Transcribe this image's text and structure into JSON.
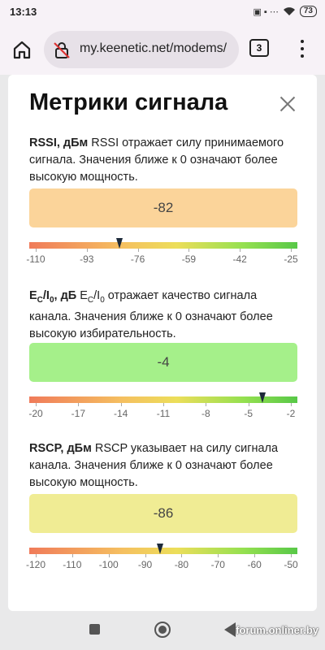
{
  "status": {
    "time": "13:13",
    "icons": "▣ ▪ ⋯",
    "battery": "73"
  },
  "browser": {
    "url": "my.keenetic.net/modems/",
    "tab_count": "3"
  },
  "dialog": {
    "title": "Метрики сигнала",
    "close_icon": "close-icon"
  },
  "metrics": [
    {
      "name": "RSSI, дБм",
      "description": " RSSI отражает силу принимаемого сигнала. Значения ближе к 0 означают более высокую мощность.",
      "value": "-82",
      "value_color": "#fbd49a",
      "marker_value": -82,
      "scale_min": -110,
      "scale_max": -25,
      "scale_labels": [
        "-110",
        "-93",
        "-76",
        "-59",
        "-42",
        "-25"
      ]
    },
    {
      "name_main": "E",
      "name_sub1": "C",
      "name_mid": "/I",
      "name_sub2": "0",
      "name_unit": ", дБ",
      "desc_main": " E",
      "desc_sub1": "C",
      "desc_mid": "/I",
      "desc_sub2": "0",
      "description": " отражает качество сигнала канала. Значения ближе к 0 означают более высокую избирательность.",
      "value": "-4",
      "value_color": "#a5f08a",
      "marker_value": -4,
      "scale_min": -20,
      "scale_max": -2,
      "scale_labels": [
        "-20",
        "-17",
        "-14",
        "-11",
        "-8",
        "-5",
        "-2"
      ]
    },
    {
      "name": "RSCP, дБм",
      "description": " RSCP указывает на силу сигнала канала. Значения ближе к 0 означают более высокую мощность.",
      "value": "-86",
      "value_color": "#f0ec94",
      "marker_value": -86,
      "scale_min": -120,
      "scale_max": -50,
      "scale_labels": [
        "-120",
        "-110",
        "-100",
        "-90",
        "-80",
        "-70",
        "-60",
        "-50"
      ]
    }
  ],
  "watermark": "forum.onliner.by"
}
